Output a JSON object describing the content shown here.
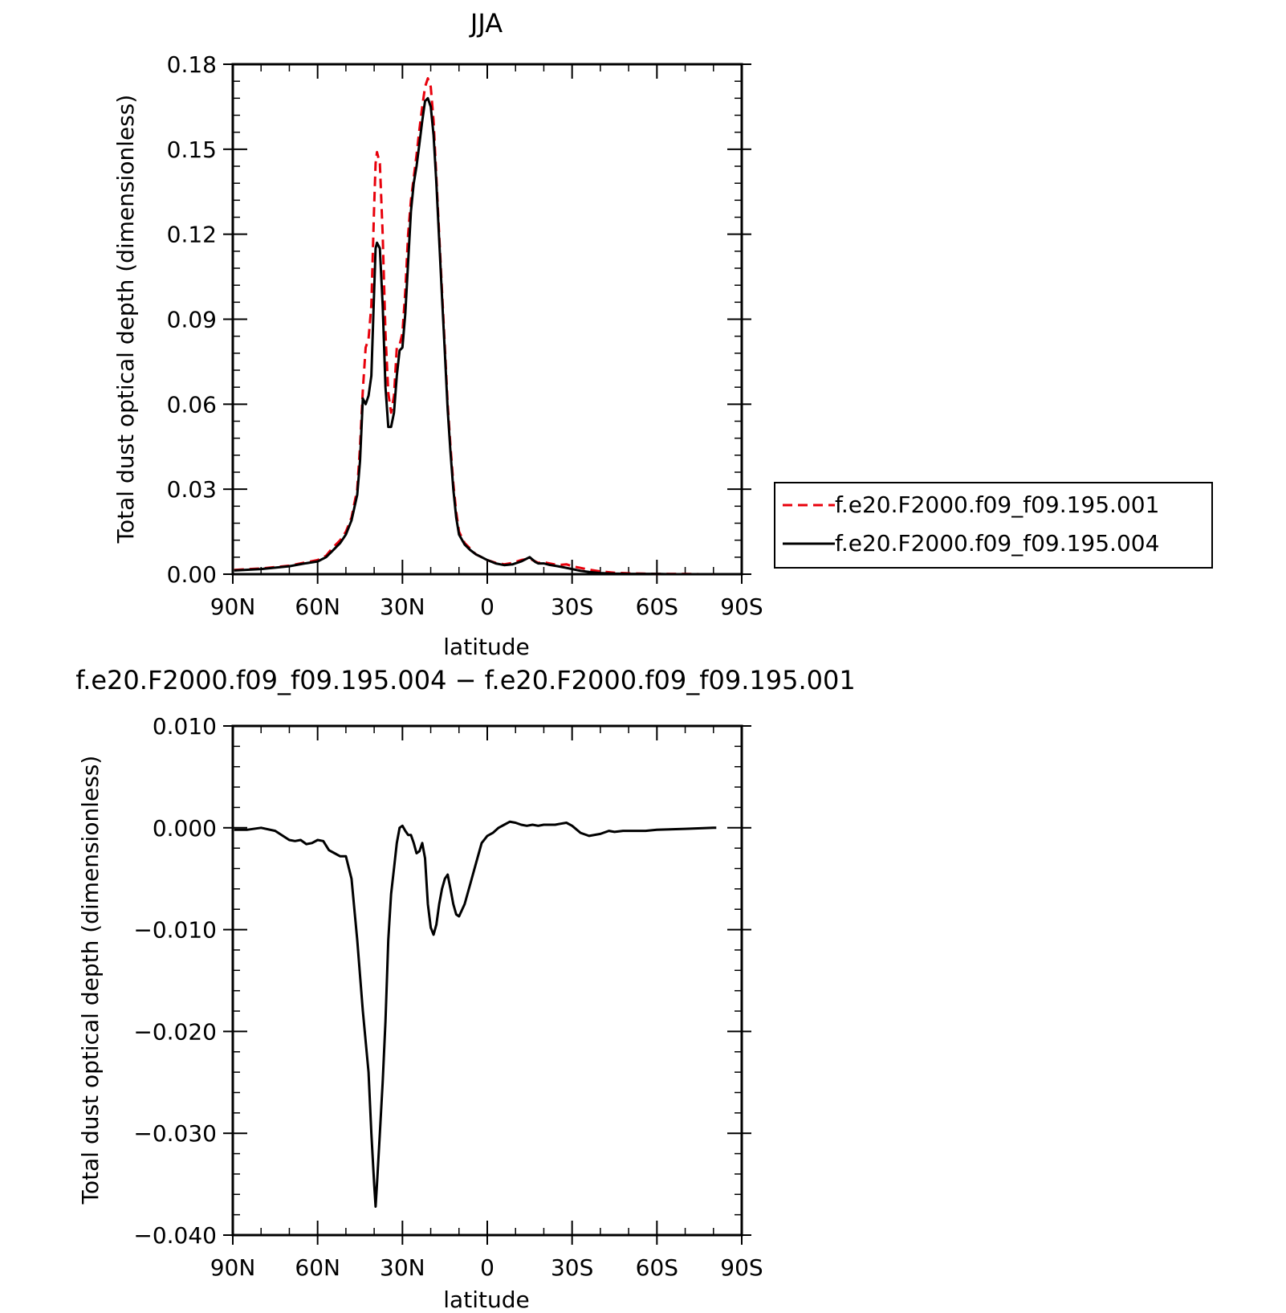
{
  "chart_data": [
    {
      "type": "line",
      "title": "JJA",
      "xlabel": "latitude",
      "ylabel": "Total dust optical depth (dimensionless)",
      "xlim": [
        90,
        -90
      ],
      "ylim": [
        0,
        0.18
      ],
      "x_ticks": [
        90,
        60,
        30,
        0,
        -30,
        -60,
        -90
      ],
      "x_tick_labels": [
        "90N",
        "60N",
        "30N",
        "0",
        "30S",
        "60S",
        "90S"
      ],
      "y_ticks": [
        0,
        0.03,
        0.06,
        0.09,
        0.12,
        0.15,
        0.18
      ],
      "y_tick_labels": [
        "0.00",
        "0.03",
        "0.06",
        "0.09",
        "0.12",
        "0.15",
        "0.18"
      ],
      "grid": false,
      "legend_position": "right",
      "legend_colors": [
        "#e8000b",
        "#000000"
      ],
      "series": [
        {
          "name": "f.e20.F2000.f09_f09.195.001",
          "color": "#e8000b",
          "dash": "dashed",
          "x": [
            89.5,
            80,
            70,
            65,
            60,
            57,
            55,
            52,
            50,
            48,
            46,
            45,
            44,
            43,
            42,
            41,
            40,
            39.5,
            39,
            38,
            37,
            36,
            35,
            34,
            33,
            32,
            31,
            30,
            29,
            28,
            27,
            26,
            25,
            24,
            23,
            22,
            21,
            20,
            19,
            18,
            17,
            16,
            15,
            14,
            13,
            12,
            11,
            10,
            8,
            6,
            4,
            2,
            0,
            -3,
            -6,
            -9,
            -12,
            -15,
            -17,
            -18,
            -20,
            -22,
            -25,
            -28,
            -30,
            -33,
            -36,
            -40,
            -45,
            -50,
            -55,
            -60,
            -65,
            -70,
            -75,
            -80
          ],
          "values": [
            0.0015,
            0.002,
            0.003,
            0.004,
            0.005,
            0.0065,
            0.009,
            0.012,
            0.015,
            0.02,
            0.03,
            0.045,
            0.065,
            0.08,
            0.083,
            0.095,
            0.13,
            0.145,
            0.149,
            0.145,
            0.12,
            0.085,
            0.064,
            0.057,
            0.063,
            0.08,
            0.081,
            0.085,
            0.1,
            0.12,
            0.132,
            0.14,
            0.148,
            0.157,
            0.165,
            0.172,
            0.175,
            0.172,
            0.16,
            0.14,
            0.12,
            0.1,
            0.08,
            0.06,
            0.045,
            0.032,
            0.022,
            0.015,
            0.011,
            0.009,
            0.007,
            0.006,
            0.005,
            0.004,
            0.0035,
            0.004,
            0.005,
            0.0055,
            0.0045,
            0.004,
            0.0042,
            0.0038,
            0.0032,
            0.0035,
            0.0028,
            0.0022,
            0.0016,
            0.001,
            0.0005,
            0.0003,
            0.0002,
            0.0001,
            0.0001,
            0.0001,
            0.0,
            0.0
          ]
        },
        {
          "name": "f.e20.F2000.f09_f09.195.004",
          "color": "#000000",
          "dash": "solid",
          "x": [
            89.5,
            80,
            70,
            65,
            60,
            57,
            55,
            52,
            50,
            48,
            46,
            45,
            44,
            43,
            42,
            41,
            40,
            39.5,
            39,
            38,
            37,
            36,
            35,
            34,
            33,
            32,
            31,
            30,
            29,
            28,
            27,
            26,
            25,
            24,
            23,
            22,
            21,
            20,
            19,
            18,
            17,
            16,
            15,
            14,
            13,
            12,
            11,
            10,
            8,
            6,
            4,
            2,
            0,
            -3,
            -6,
            -9,
            -12,
            -15,
            -17,
            -18,
            -20,
            -22,
            -25,
            -28,
            -30,
            -33,
            -36,
            -40,
            -45,
            -50,
            -55,
            -60,
            -65,
            -70,
            -75,
            -80
          ],
          "values": [
            0.0013,
            0.0018,
            0.0028,
            0.0037,
            0.0045,
            0.006,
            0.008,
            0.011,
            0.014,
            0.019,
            0.028,
            0.04,
            0.062,
            0.06,
            0.063,
            0.07,
            0.1,
            0.115,
            0.117,
            0.115,
            0.095,
            0.066,
            0.052,
            0.052,
            0.057,
            0.07,
            0.079,
            0.08,
            0.092,
            0.11,
            0.128,
            0.138,
            0.144,
            0.152,
            0.16,
            0.167,
            0.168,
            0.165,
            0.155,
            0.138,
            0.118,
            0.098,
            0.078,
            0.058,
            0.043,
            0.03,
            0.02,
            0.014,
            0.0105,
            0.0085,
            0.007,
            0.006,
            0.005,
            0.0038,
            0.0032,
            0.0035,
            0.0045,
            0.006,
            0.0043,
            0.0038,
            0.0038,
            0.0033,
            0.0028,
            0.0022,
            0.0018,
            0.0012,
            0.0008,
            0.0004,
            0.0002,
            0.0001,
            0.0001,
            0.0001,
            0.0,
            0.0,
            0.0,
            0.0
          ]
        }
      ]
    },
    {
      "type": "line",
      "title": "f.e20.F2000.f09_f09.195.004 − f.e20.F2000.f09_f09.195.001",
      "xlabel": "latitude",
      "ylabel": "Total dust optical depth (dimensionless)",
      "xlim": [
        90,
        -90
      ],
      "ylim": [
        -0.04,
        0.01
      ],
      "x_ticks": [
        90,
        60,
        30,
        0,
        -30,
        -60,
        -90
      ],
      "x_tick_labels": [
        "90N",
        "60N",
        "30N",
        "0",
        "30S",
        "60S",
        "90S"
      ],
      "y_ticks": [
        -0.04,
        -0.03,
        -0.02,
        -0.01,
        0.0,
        0.01
      ],
      "y_tick_labels": [
        "−0.040",
        "−0.030",
        "−0.020",
        "−0.010",
        "0.000",
        "0.010"
      ],
      "grid": false,
      "series": [
        {
          "color": "#000000",
          "x": [
            89.5,
            85,
            80,
            75,
            70,
            68,
            66,
            64,
            62,
            60,
            58,
            56,
            54,
            52,
            50,
            48,
            46,
            44,
            42,
            41,
            40,
            39.5,
            39,
            38,
            37,
            36,
            35,
            34,
            33,
            32,
            31,
            30,
            29,
            28,
            27,
            26,
            25,
            24,
            23,
            22,
            21,
            20,
            19,
            18,
            17,
            16,
            15,
            14,
            13,
            12,
            11,
            10,
            8,
            6,
            4,
            2,
            0,
            -2,
            -4,
            -6,
            -8,
            -10,
            -12,
            -14,
            -16,
            -18,
            -20,
            -22,
            -24,
            -26,
            -28,
            -30,
            -33,
            -36,
            -40,
            -43,
            -45,
            -48,
            -52,
            -56,
            -60,
            -70,
            -80,
            -81
          ],
          "values": [
            -0.0002,
            -0.0002,
            0.0,
            -0.0003,
            -0.0012,
            -0.0013,
            -0.0012,
            -0.0016,
            -0.0015,
            -0.0012,
            -0.0013,
            -0.0022,
            -0.0025,
            -0.0028,
            -0.0028,
            -0.005,
            -0.011,
            -0.018,
            -0.024,
            -0.03,
            -0.035,
            -0.0372,
            -0.035,
            -0.03,
            -0.025,
            -0.019,
            -0.011,
            -0.0065,
            -0.004,
            -0.0015,
            0.0,
            0.0002,
            -0.0003,
            -0.0007,
            -0.0007,
            -0.0015,
            -0.0025,
            -0.0023,
            -0.0015,
            -0.003,
            -0.0075,
            -0.0098,
            -0.0105,
            -0.0095,
            -0.0075,
            -0.006,
            -0.005,
            -0.0046,
            -0.006,
            -0.0075,
            -0.0085,
            -0.0087,
            -0.0075,
            -0.0055,
            -0.0035,
            -0.0015,
            -0.0008,
            -0.0005,
            0.0,
            0.0003,
            0.0006,
            0.0005,
            0.0003,
            0.0002,
            0.0003,
            0.0002,
            0.0003,
            0.0003,
            0.0003,
            0.0004,
            0.0005,
            0.0002,
            -0.0005,
            -0.0008,
            -0.0006,
            -0.0003,
            -0.0004,
            -0.0003,
            -0.0003,
            -0.0003,
            -0.0002,
            -0.0001,
            0.0,
            0.0
          ]
        }
      ]
    }
  ]
}
